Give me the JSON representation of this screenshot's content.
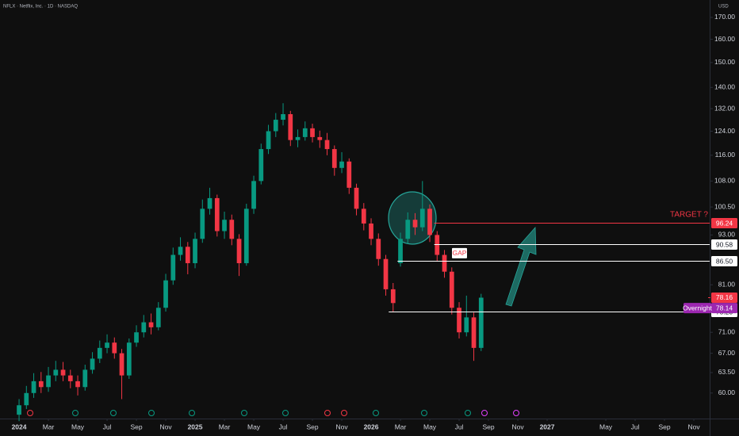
{
  "chart_data": {
    "type": "candlestick",
    "title": "NFLX · Netflix, Inc. · 1D · NASDAQ",
    "currency": "USD",
    "log_scale": true,
    "grid": false,
    "up_color": "#089981",
    "down_color": "#f23645",
    "x": [
      0,
      0.5,
      1,
      1.5,
      2,
      2.5,
      3,
      3.5,
      4,
      4.5,
      5,
      5.5,
      6,
      6.5,
      7,
      7.5,
      8,
      8.5,
      9,
      9.5,
      10,
      10.5,
      11,
      11.5,
      12,
      12.5,
      13,
      13.5,
      14,
      14.5,
      15,
      15.5,
      16,
      16.5,
      17,
      17.5,
      18,
      18.5,
      19,
      19.5,
      20,
      20.5,
      21,
      21.5,
      22,
      22.5,
      23,
      23.5,
      24,
      24.5,
      25,
      25.5,
      26,
      26.5,
      27,
      27.5,
      28,
      28.5,
      29,
      29.5,
      30,
      30.5,
      31,
      31.5
    ],
    "open": [
      56.5,
      58,
      60,
      62,
      61,
      63,
      64,
      63,
      62,
      61,
      64,
      66,
      68,
      69,
      67,
      63,
      69,
      71,
      73,
      72,
      76,
      82,
      88,
      90,
      86,
      92,
      100,
      103,
      94,
      97,
      92,
      86,
      100,
      108,
      118,
      124,
      128,
      130,
      121,
      122,
      125,
      122,
      121,
      118,
      112,
      114,
      106,
      100,
      96,
      92,
      87,
      80,
      86,
      92,
      97,
      95,
      100,
      93,
      88,
      84,
      76,
      71,
      74,
      68
    ],
    "high": [
      59,
      61.2,
      63.4,
      63.6,
      64.5,
      65.6,
      65.4,
      64,
      63,
      64.9,
      67.2,
      69.4,
      70.6,
      70,
      67.8,
      69.8,
      72.4,
      74.5,
      74.8,
      77.2,
      83.5,
      89.8,
      92.4,
      91.2,
      93.6,
      102.6,
      106,
      104,
      99.2,
      98.4,
      93.2,
      101.4,
      109.6,
      119.8,
      126.2,
      130.4,
      134,
      131.2,
      124.6,
      127.4,
      126.6,
      124.2,
      123.4,
      119.2,
      117,
      115,
      107.2,
      101.6,
      97.4,
      93.4,
      88,
      81.4,
      93.6,
      99,
      98.8,
      108,
      101.2,
      94,
      89.2,
      85,
      77.2,
      78.6,
      75,
      79
    ],
    "low": [
      55.5,
      57.4,
      59.2,
      60,
      60.2,
      62,
      62,
      60.8,
      59.6,
      60.4,
      63.3,
      65.2,
      67,
      66,
      59,
      62.4,
      68.2,
      70,
      70.6,
      71.4,
      75.2,
      81,
      86.6,
      83.4,
      84.8,
      91,
      98.4,
      92.6,
      92,
      90.4,
      83,
      85.4,
      98.6,
      107,
      116.4,
      122,
      126,
      119,
      118.6,
      120.8,
      120.2,
      118.4,
      116,
      109.6,
      110.4,
      104.2,
      98.2,
      94.2,
      90.4,
      85.4,
      78.6,
      75.2,
      85.2,
      90.8,
      93,
      94,
      91.2,
      86.4,
      82.6,
      74.6,
      69.8,
      70.2,
      65.6,
      67.4
    ],
    "close": [
      58,
      60,
      62,
      61,
      63,
      64,
      63,
      62,
      61,
      64,
      66,
      68,
      69,
      67,
      63,
      69,
      71,
      73,
      72,
      76,
      82,
      88,
      90,
      86,
      92,
      100,
      103,
      94,
      97,
      92,
      86,
      100,
      108,
      118,
      124,
      128,
      130,
      121,
      122,
      125,
      122,
      121,
      118,
      112,
      114,
      106,
      100,
      96,
      92,
      87,
      80,
      77,
      92,
      97,
      95,
      100,
      93,
      88,
      84,
      76,
      71,
      74,
      68,
      78.16
    ],
    "xlim": [
      -1.3,
      47.08
    ],
    "ylim": [
      55.9,
      178.4
    ],
    "xticks": [
      {
        "value": 0,
        "label": "2024"
      },
      {
        "value": 2,
        "label": "Mar"
      },
      {
        "value": 4,
        "label": "May"
      },
      {
        "value": 6,
        "label": "Jul"
      },
      {
        "value": 8,
        "label": "Sep"
      },
      {
        "value": 10,
        "label": "Nov"
      },
      {
        "value": 12,
        "label": "2025"
      },
      {
        "value": 14,
        "label": "Mar"
      },
      {
        "value": 16,
        "label": "May"
      },
      {
        "value": 18,
        "label": "Jul"
      },
      {
        "value": 20,
        "label": "Sep"
      },
      {
        "value": 22,
        "label": "Nov"
      },
      {
        "value": 24,
        "label": "2026"
      },
      {
        "value": 26,
        "label": "Mar"
      },
      {
        "value": 28,
        "label": "May"
      },
      {
        "value": 30,
        "label": "Jul"
      },
      {
        "value": 32,
        "label": "Sep"
      },
      {
        "value": 34,
        "label": "Nov"
      },
      {
        "value": 36,
        "label": "2027"
      },
      {
        "value": 40,
        "label": "May"
      },
      {
        "value": 42,
        "label": "Jul"
      },
      {
        "value": 44,
        "label": "Sep"
      },
      {
        "value": 46,
        "label": "Nov"
      }
    ],
    "yticks": [
      {
        "value": 60,
        "label": "60.00"
      },
      {
        "value": 63.5,
        "label": "63.50"
      },
      {
        "value": 67,
        "label": "67.00"
      },
      {
        "value": 71,
        "label": "71.00"
      },
      {
        "value": 81,
        "label": "81.00"
      },
      {
        "value": 93,
        "label": "93.00"
      },
      {
        "value": 100.5,
        "label": "100.50"
      },
      {
        "value": 108,
        "label": "108.00"
      },
      {
        "value": 116,
        "label": "116.00"
      },
      {
        "value": 124,
        "label": "124.00"
      },
      {
        "value": 132,
        "label": "132.00"
      },
      {
        "value": 140,
        "label": "140.00"
      },
      {
        "value": 150,
        "label": "150.00"
      },
      {
        "value": 160,
        "label": "160.00"
      },
      {
        "value": 170,
        "label": "170.00"
      }
    ],
    "price_lines": [
      {
        "value": 96.24,
        "x_start": 28.3,
        "color": "#f23645"
      },
      {
        "value": 90.58,
        "x_start": 28.3,
        "color": "#ffffff"
      },
      {
        "value": 86.5,
        "label": "86.50",
        "x_start": 25.8,
        "color": "#ffffff"
      },
      {
        "value": 75.23,
        "x_start": 25.2,
        "color": "#ffffff"
      }
    ],
    "last_price": {
      "value": 78.16,
      "color": "#f23645"
    },
    "overnight": {
      "name": "Overnight",
      "value": 78.14,
      "color": "#9c27b0"
    },
    "annotations": {
      "target": "TARGET ?",
      "gap": "GAP"
    }
  }
}
